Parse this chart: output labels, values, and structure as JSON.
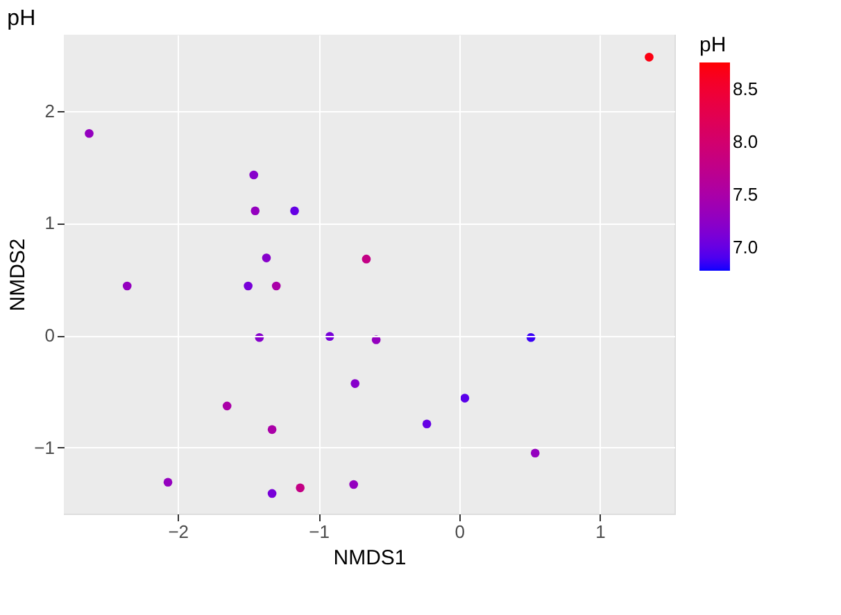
{
  "chart_data": {
    "type": "scatter",
    "title": "pH",
    "xlabel": "NMDS1",
    "ylabel": "NMDS2",
    "clabel": "pH",
    "x": [
      -2.63,
      -1.46,
      -1.45,
      -1.17,
      -1.37,
      -0.66,
      -2.36,
      -1.5,
      -1.3,
      -1.42,
      -0.92,
      -0.59,
      -0.74,
      -1.65,
      -1.33,
      -2.07,
      -1.33,
      -1.13,
      -0.75,
      0.51,
      0.04,
      -0.23,
      0.54,
      1.35
    ],
    "values": [
      1.8,
      1.43,
      1.11,
      1.11,
      0.69,
      0.68,
      0.44,
      0.44,
      0.44,
      -0.02,
      -0.01,
      -0.04,
      -0.43,
      -0.63,
      -0.84,
      -1.31,
      -1.41,
      -1.36,
      -1.33,
      -0.02,
      -0.56,
      -0.79,
      -1.05,
      2.48
    ],
    "cvalues": [
      7.3,
      7.2,
      7.3,
      7.0,
      7.2,
      7.8,
      7.3,
      7.1,
      7.5,
      7.2,
      7.1,
      7.3,
      7.2,
      7.5,
      7.5,
      7.3,
      7.1,
      7.8,
      7.3,
      6.85,
      6.95,
      7.0,
      7.3,
      8.7
    ],
    "clim": [
      6.78,
      8.76
    ],
    "cticks": [
      {
        "value": 7,
        "label": "7.0"
      },
      {
        "value": 7.5,
        "label": "7.5"
      },
      {
        "value": 8,
        "label": "8.0"
      },
      {
        "value": 8.5,
        "label": "8.5"
      }
    ],
    "xlim": [
      -2.81,
      1.53
    ],
    "xticks": [
      -2,
      -1,
      0,
      1
    ],
    "ylim": [
      -1.59,
      2.68
    ],
    "yticks": [
      -1,
      0,
      1,
      2
    ],
    "grid": true
  }
}
